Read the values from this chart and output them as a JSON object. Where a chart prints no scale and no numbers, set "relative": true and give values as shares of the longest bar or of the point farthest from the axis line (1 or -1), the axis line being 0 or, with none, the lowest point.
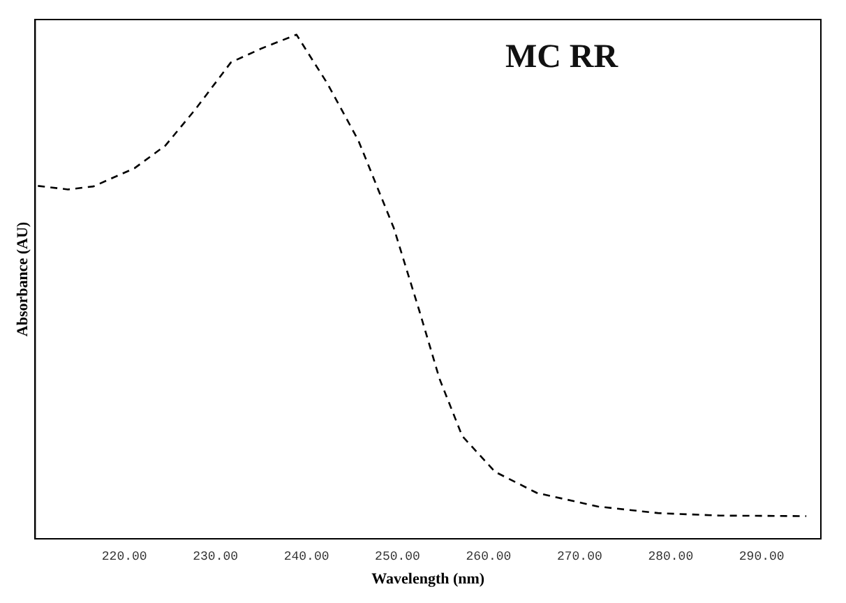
{
  "chart_data": {
    "type": "line",
    "title": "MC RR",
    "xlabel": "Wavelength (nm)",
    "ylabel": "Absorbance (AU)",
    "relative": true,
    "grid": false,
    "legend": false,
    "marker": "none",
    "line_style": "dashed",
    "xlim": [
      210.2,
      296.5
    ],
    "xticks": [
      {
        "value": 220,
        "label": "220.00"
      },
      {
        "value": 230,
        "label": "230.00"
      },
      {
        "value": 240,
        "label": "240.00"
      },
      {
        "value": 250,
        "label": "250.00"
      },
      {
        "value": 260,
        "label": "260.00"
      },
      {
        "value": 270,
        "label": "270.00"
      },
      {
        "value": 280,
        "label": "280.00"
      },
      {
        "value": 290,
        "label": "290.00"
      }
    ],
    "x": [
      210.5,
      213.8,
      216.6,
      221.1,
      224.5,
      227.8,
      231.7,
      235.1,
      238.9,
      242.3,
      245.7,
      249.6,
      252.4,
      254.6,
      257.1,
      260.7,
      265.3,
      272.0,
      278.6,
      285.4,
      294.9
    ],
    "series": [
      {
        "color": "#000000",
        "values": [
          0.7,
          0.693,
          0.699,
          0.735,
          0.78,
          0.852,
          0.945,
          0.973,
          1,
          0.903,
          0.79,
          0.616,
          0.452,
          0.318,
          0.204,
          0.133,
          0.091,
          0.064,
          0.051,
          0.046,
          0.045
        ]
      }
    ]
  }
}
